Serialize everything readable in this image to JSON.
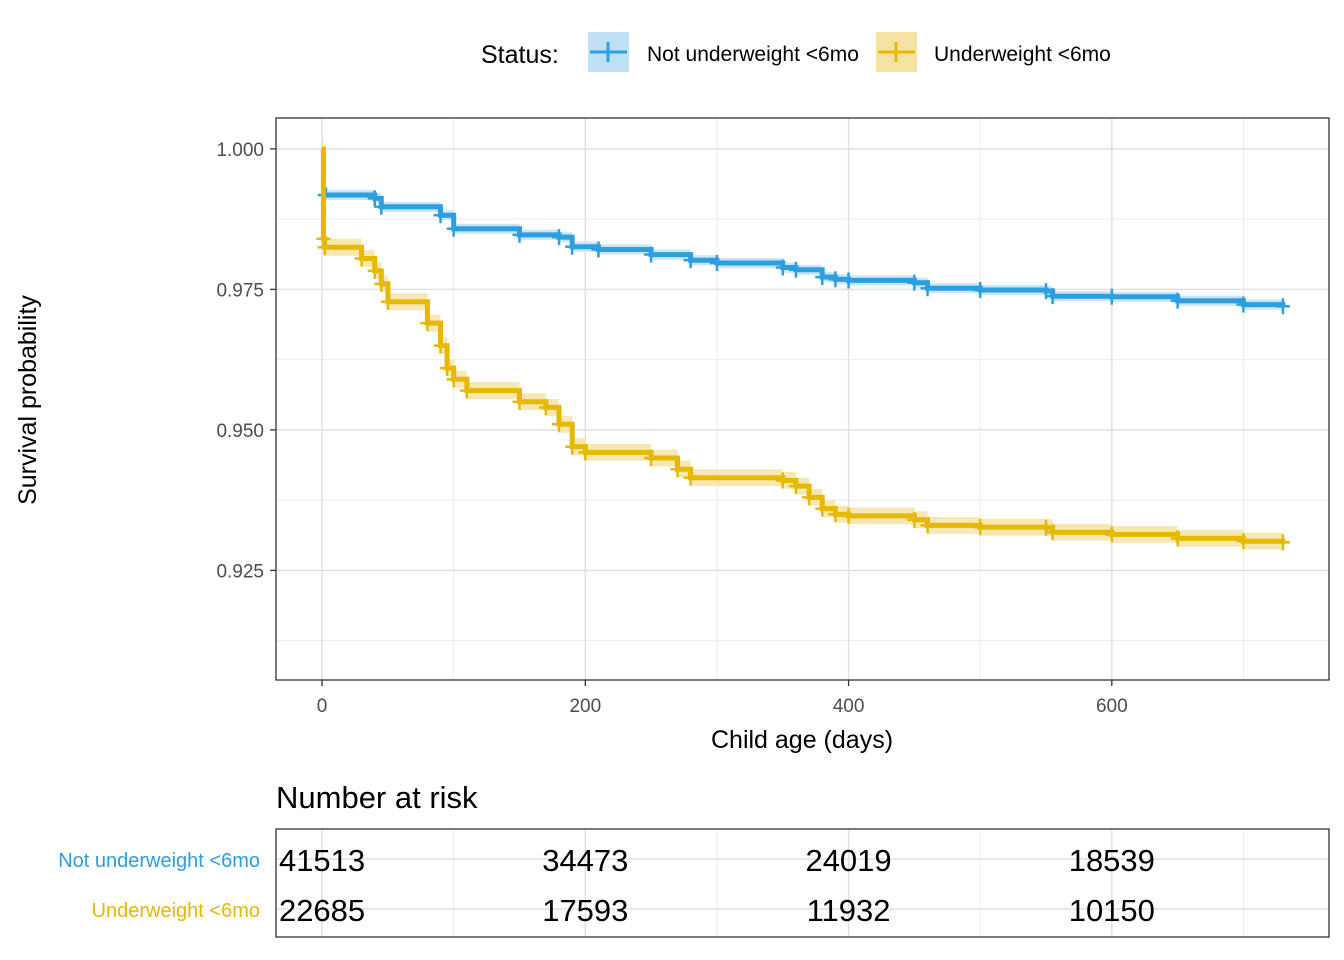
{
  "legend": {
    "title": "Status:",
    "items": [
      {
        "label": "Not underweight <6mo",
        "color": "#2D9EDF"
      },
      {
        "label": "Underweight <6mo",
        "color": "#E6B800"
      }
    ]
  },
  "axes": {
    "xlabel": "Child age (days)",
    "ylabel": "Survival probability"
  },
  "risk_table": {
    "title": "Number at risk",
    "strata": [
      {
        "label": "Not underweight <6mo",
        "color": "#2D9EDF",
        "counts": [
          "41513",
          "34473",
          "24019",
          "18539"
        ]
      },
      {
        "label": "Underweight <6mo",
        "color": "#E6B800",
        "counts": [
          "22685",
          "17593",
          "11932",
          "10150"
        ]
      }
    ],
    "times": [
      0,
      200,
      400,
      600
    ]
  },
  "chart_data": {
    "type": "line",
    "title": "",
    "xlabel": "Child age (days)",
    "ylabel": "Survival probability",
    "xlim": [
      -35,
      765
    ],
    "ylim": [
      0.9055,
      1.0055
    ],
    "x_ticks": [
      0,
      200,
      400,
      600
    ],
    "x_tick_labels": [
      "0",
      "200",
      "400",
      "600"
    ],
    "y_ticks": [
      0.925,
      0.95,
      0.975,
      1.0
    ],
    "y_tick_labels": [
      "0.925",
      "0.950",
      "0.975",
      "1.000"
    ],
    "grid": true,
    "legend_position": "top",
    "series": [
      {
        "name": "Not underweight <6mo",
        "color": "#2D9EDF",
        "band_color": "#BFE0F5",
        "x": [
          0,
          2,
          40,
          45,
          90,
          100,
          150,
          180,
          190,
          210,
          250,
          280,
          300,
          350,
          360,
          380,
          390,
          400,
          450,
          460,
          500,
          550,
          555,
          600,
          650,
          700,
          730
        ],
        "y": [
          0.9927,
          0.9918,
          0.9912,
          0.9897,
          0.9882,
          0.9858,
          0.9847,
          0.9843,
          0.9826,
          0.9821,
          0.9812,
          0.9802,
          0.9797,
          0.9789,
          0.9785,
          0.9772,
          0.9768,
          0.9766,
          0.9762,
          0.9752,
          0.9749,
          0.9747,
          0.9738,
          0.9737,
          0.973,
          0.9723,
          0.972
        ]
      },
      {
        "name": "Underweight <6mo",
        "color": "#E6B800",
        "band_color": "#F5E3A6",
        "x": [
          0,
          1,
          2,
          30,
          40,
          45,
          50,
          80,
          90,
          95,
          100,
          110,
          150,
          170,
          180,
          190,
          200,
          250,
          270,
          280,
          350,
          360,
          370,
          380,
          390,
          400,
          450,
          460,
          500,
          550,
          555,
          600,
          650,
          700,
          730
        ],
        "y": [
          1.0,
          0.984,
          0.9825,
          0.9805,
          0.9783,
          0.976,
          0.9728,
          0.969,
          0.965,
          0.961,
          0.959,
          0.957,
          0.955,
          0.954,
          0.951,
          0.947,
          0.946,
          0.945,
          0.943,
          0.9415,
          0.941,
          0.94,
          0.938,
          0.936,
          0.935,
          0.9347,
          0.934,
          0.933,
          0.9327,
          0.9326,
          0.9318,
          0.9314,
          0.9307,
          0.9302,
          0.93
        ]
      }
    ]
  }
}
